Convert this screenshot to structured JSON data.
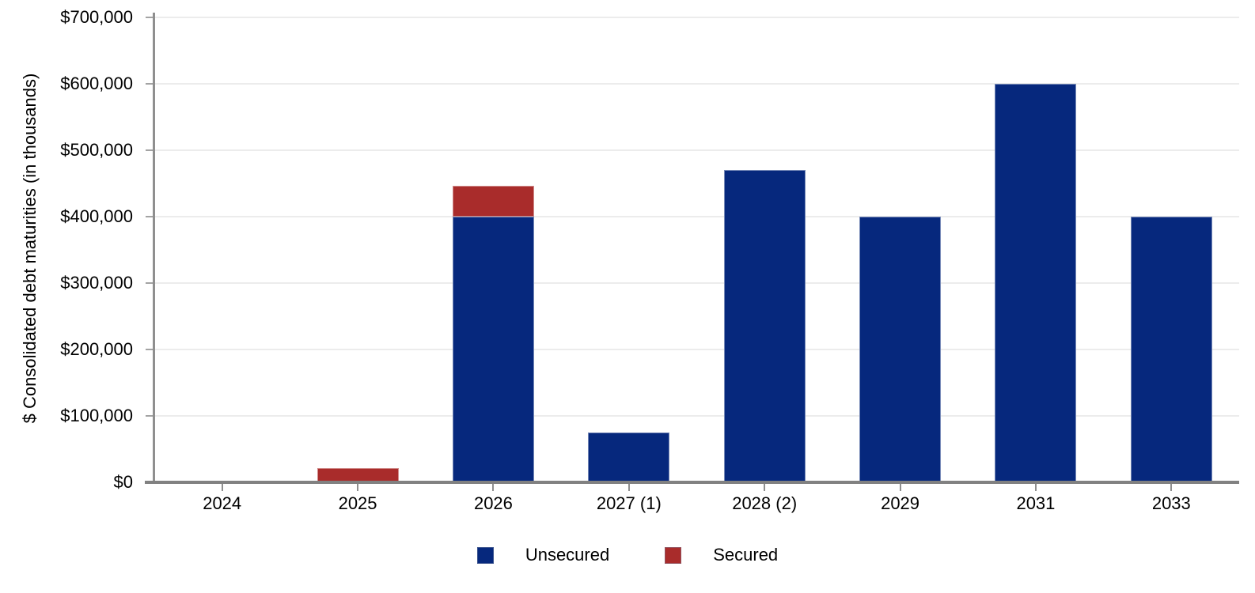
{
  "chart_data": {
    "type": "bar",
    "stacked": true,
    "title": "",
    "xlabel": "",
    "ylabel": "$ Consolidated debt maturities (in thousands)",
    "categories": [
      "2024",
      "2025",
      "2026",
      "2027 (1)",
      "2028 (2)",
      "2029",
      "2031",
      "2033"
    ],
    "series": [
      {
        "name": "Unsecured",
        "color": "#06287d",
        "values": [
          0,
          0,
          400000,
          75000,
          470000,
          400000,
          600000,
          400000
        ]
      },
      {
        "name": "Secured",
        "color": "#a92c2b",
        "values": [
          0,
          22000,
          46000,
          0,
          0,
          0,
          0,
          0
        ]
      }
    ],
    "ylim": [
      0,
      700000
    ],
    "ytick_step": 100000,
    "ytick_labels": [
      "$0",
      "$100,000",
      "$200,000",
      "$300,000",
      "$400,000",
      "$500,000",
      "$600,000",
      "$700,000"
    ],
    "grid": true,
    "legend_position": "bottom"
  },
  "colors": {
    "background": "#ffffff",
    "axis_line": "#818181",
    "tick": "#8f8f8f",
    "gridline": "#ececec",
    "text": "#000000",
    "unsecured": "#06287d",
    "secured": "#a92c2b"
  }
}
